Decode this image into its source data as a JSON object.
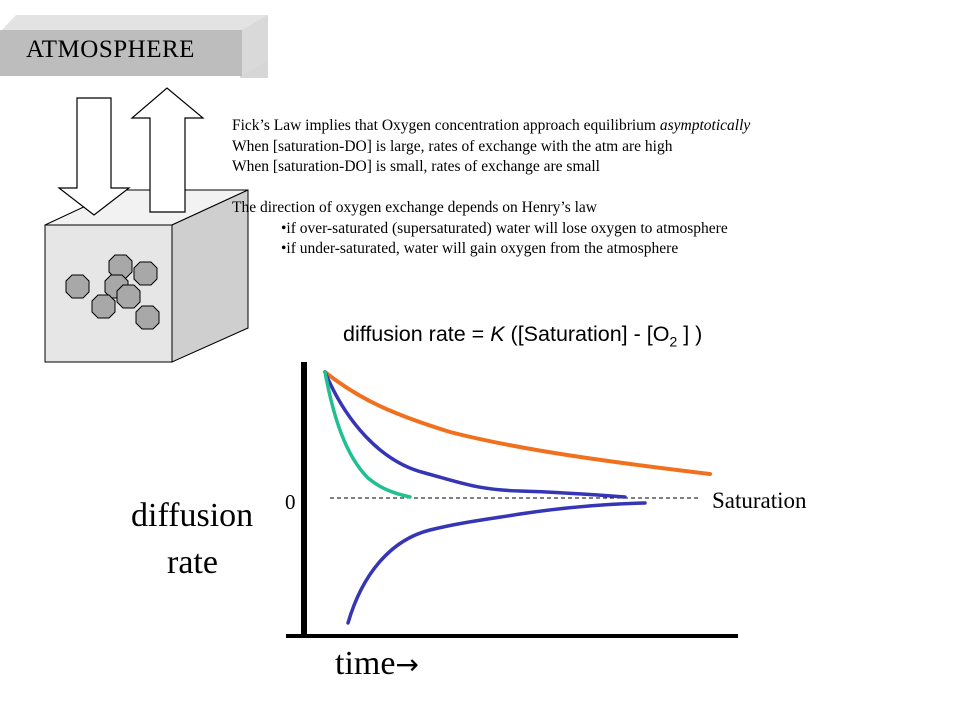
{
  "banner": {
    "label": "ATMOSPHERE"
  },
  "notes": {
    "fick_prefix": "Fick’s Law implies that Oxygen concentration approach equilibrium ",
    "fick_emphasis": "asymptotically",
    "large_line": "When [saturation-DO] is large, rates of exchange with the atm are high",
    "small_line": "When [saturation-DO] is small, rates of exchange are small",
    "henry_line": "The direction of oxygen exchange depends on Henry’s law",
    "bullets": [
      "•if over-saturated (supersaturated) water will lose oxygen to atmosphere",
      "•if under-saturated, water will gain oxygen from the atmosphere"
    ]
  },
  "equation": {
    "prefix": "diffusion rate = ",
    "k": "K",
    "middle": " ([Saturation] - [O",
    "subscript": "2",
    "suffix": " ] )"
  },
  "graph": {
    "zero_label": "0",
    "saturation_label": "Saturation",
    "ylabel_line1": "diffusion",
    "ylabel_line2": "rate",
    "xlabel": "time",
    "xlabel_arrow": "→"
  },
  "colors": {
    "orange_curve": "#f0701e",
    "blue_curve": "#3535b5",
    "teal_curve": "#20c090",
    "banner_face": "#bdbdbd",
    "banner_depth": "#d6d6d6",
    "cube_front": "#e6e6e6",
    "cube_top": "#f2f2f2",
    "cube_side": "#cfcfcf",
    "molecule": "#a8a8a8"
  }
}
